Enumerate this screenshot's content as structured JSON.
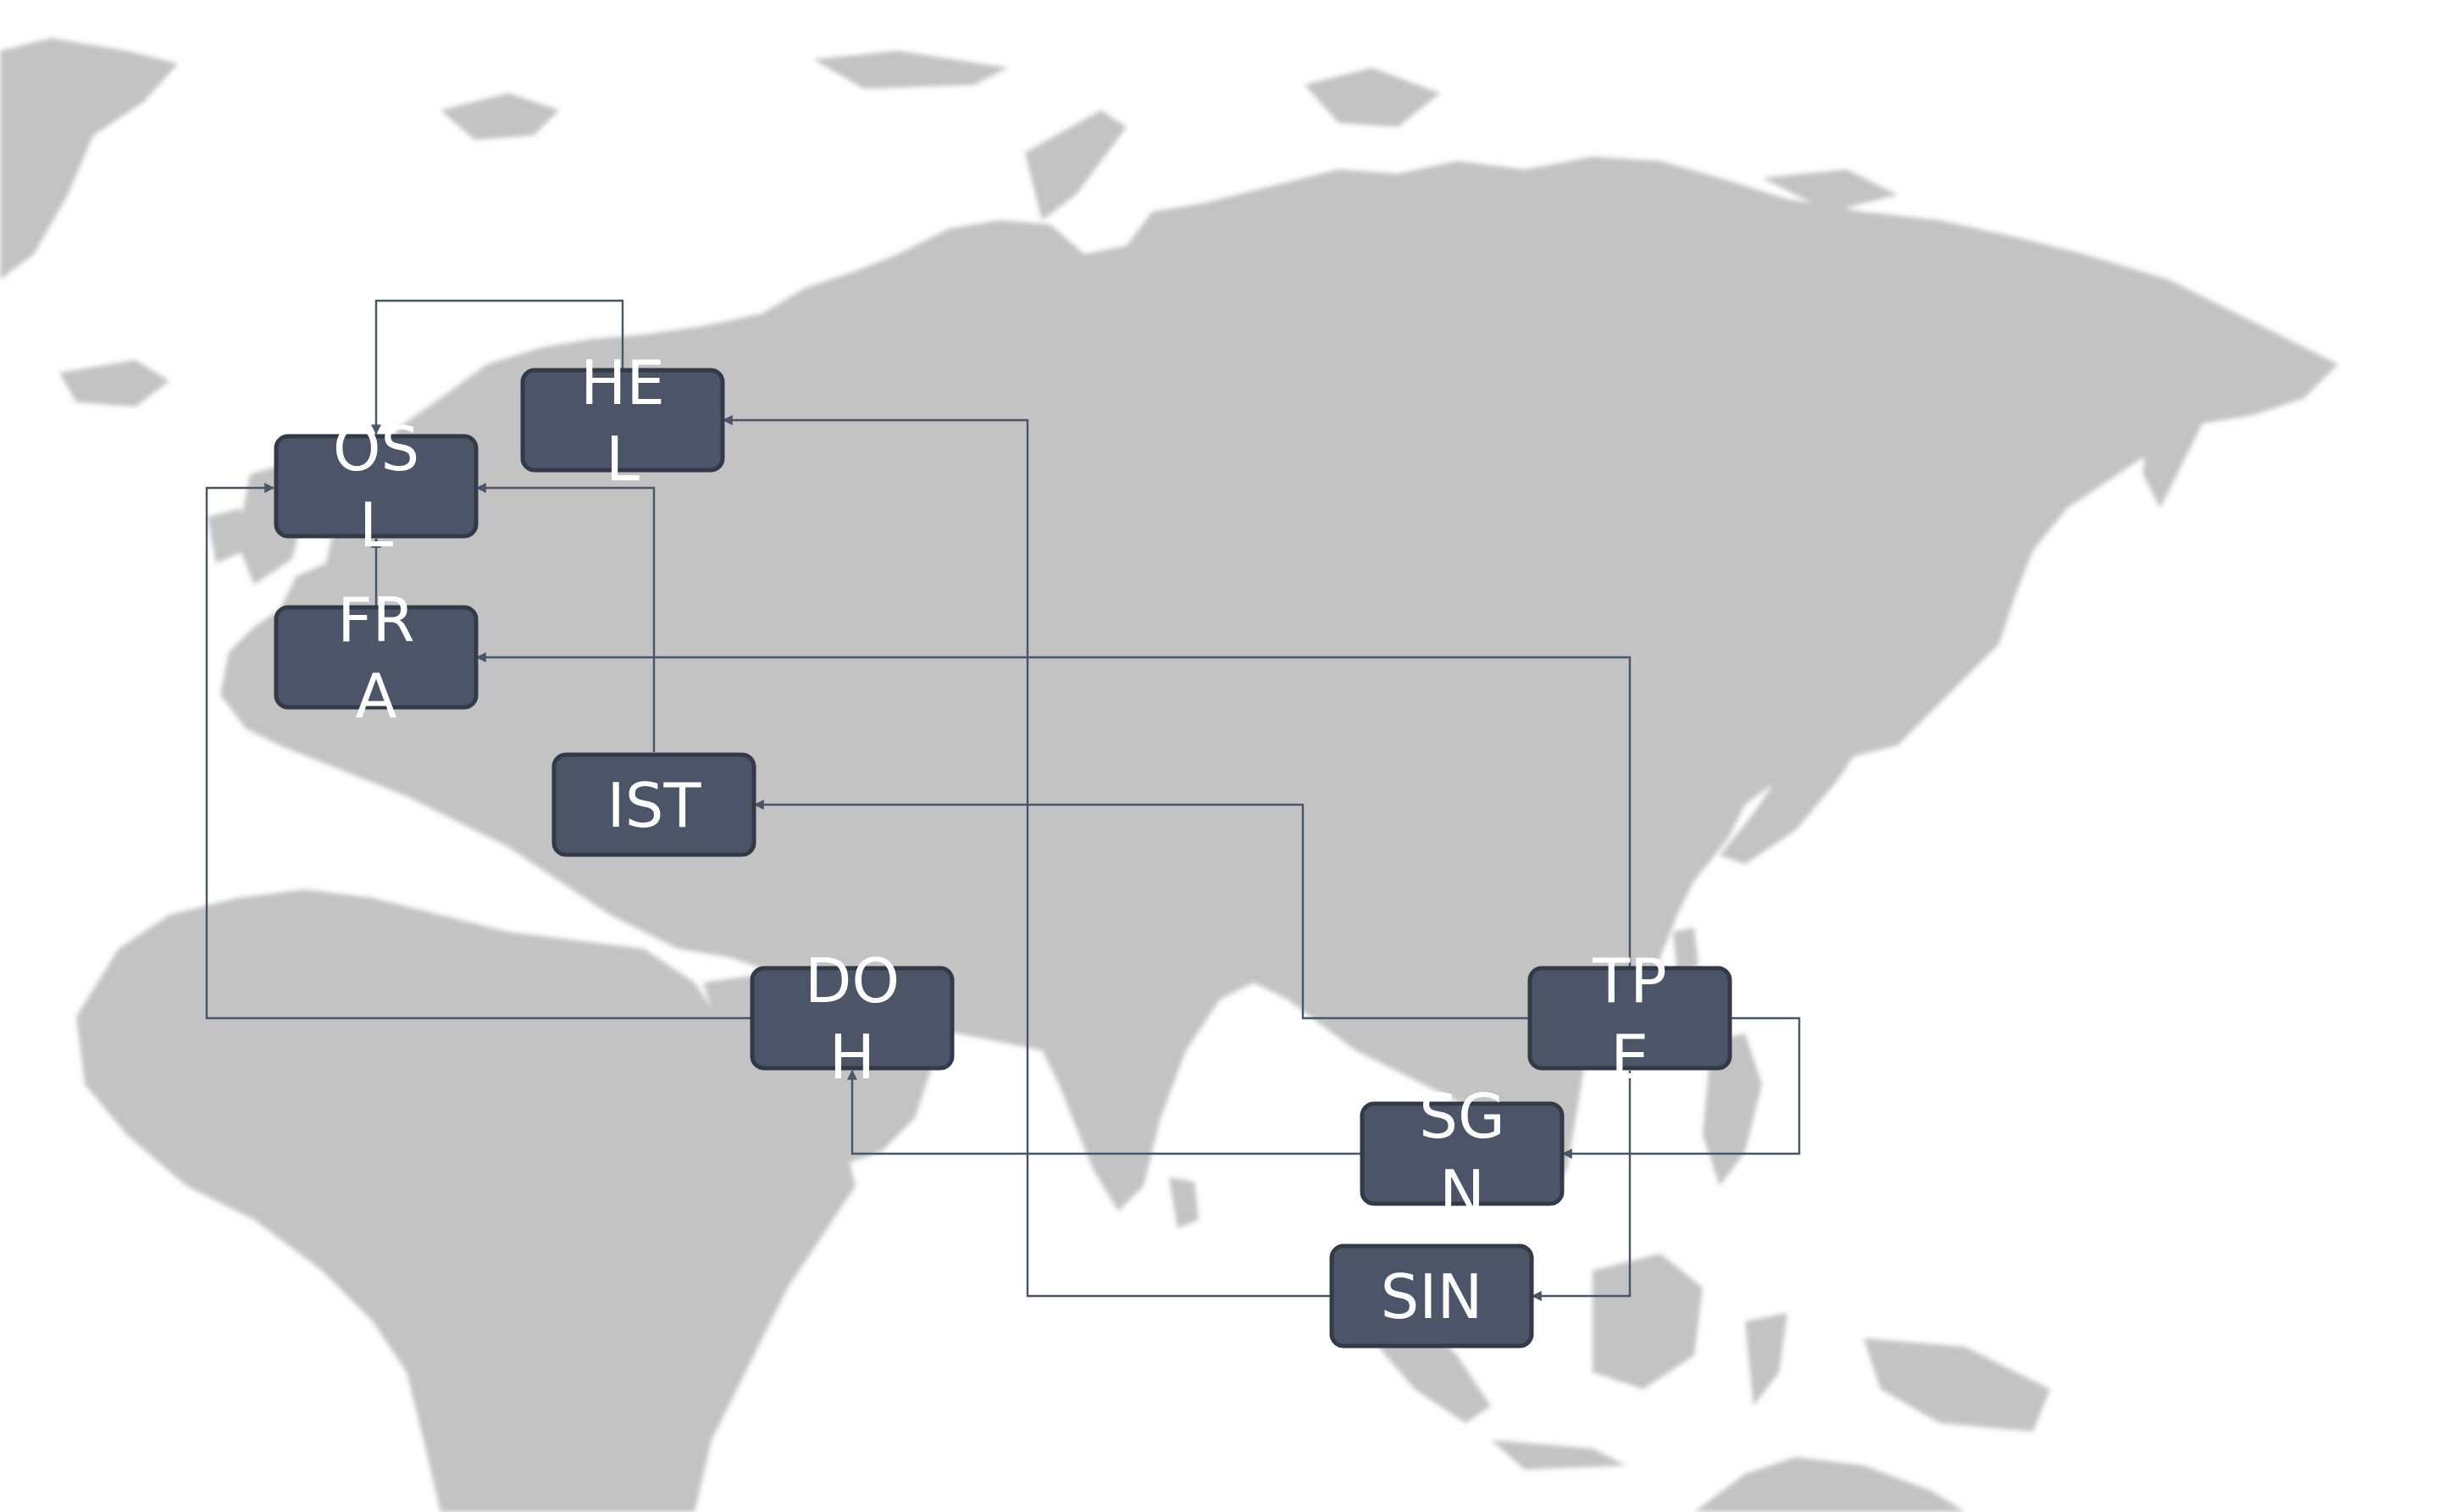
{
  "nodes": [
    {
      "id": "OSL",
      "lines": [
        "OS",
        "L"
      ]
    },
    {
      "id": "HEL",
      "lines": [
        "HE",
        "L"
      ]
    },
    {
      "id": "FRA",
      "lines": [
        "FR",
        "A"
      ]
    },
    {
      "id": "IST",
      "lines": [
        "IST"
      ]
    },
    {
      "id": "DOH",
      "lines": [
        "DO",
        "H"
      ]
    },
    {
      "id": "TPE",
      "lines": [
        "TP",
        "E"
      ]
    },
    {
      "id": "SGN",
      "lines": [
        "SG",
        "N"
      ]
    },
    {
      "id": "SIN",
      "lines": [
        "SIN"
      ]
    }
  ],
  "edges": [
    {
      "from": "HEL",
      "to": "OSL"
    },
    {
      "from": "IST",
      "to": "OSL"
    },
    {
      "from": "DOH",
      "to": "OSL"
    },
    {
      "from": "FRA",
      "to": "OSL"
    },
    {
      "from": "SIN",
      "to": "HEL"
    },
    {
      "from": "TPE",
      "to": "FRA"
    },
    {
      "from": "TPE",
      "to": "IST"
    },
    {
      "from": "SGN",
      "to": "DOH"
    },
    {
      "from": "TPE",
      "to": "SGN"
    },
    {
      "from": "TPE",
      "to": "SIN"
    }
  ],
  "colors": {
    "node_fill": "#4b5567",
    "node_border": "#323a47",
    "edge": "#4a5567",
    "land": "#c3c3c3",
    "background": "#ffffff"
  }
}
